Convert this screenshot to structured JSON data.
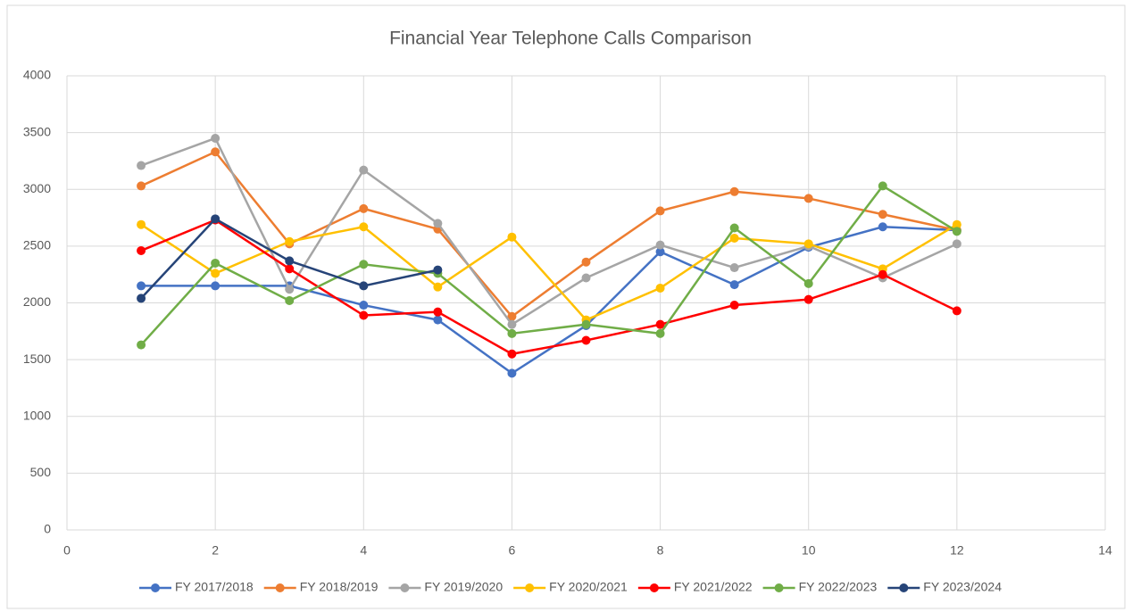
{
  "chart_data": {
    "type": "line",
    "title": "Financial Year Telephone Calls Comparison",
    "x": [
      1,
      2,
      3,
      4,
      5,
      6,
      7,
      8,
      9,
      10,
      11,
      12
    ],
    "xlim": [
      0,
      14
    ],
    "xticks": [
      0,
      2,
      4,
      6,
      8,
      10,
      12,
      14
    ],
    "ylim": [
      0,
      4000
    ],
    "yticks": [
      0,
      500,
      1000,
      1500,
      2000,
      2500,
      3000,
      3500,
      4000
    ],
    "grid": true,
    "legend": "bottom",
    "series": [
      {
        "name": "FY 2017/2018",
        "color": "#4472c4",
        "values": [
          2150,
          2150,
          2150,
          1980,
          1850,
          1380,
          1800,
          2450,
          2160,
          2490,
          2670,
          2640
        ]
      },
      {
        "name": "FY 2018/2019",
        "color": "#ed7d31",
        "values": [
          3030,
          3330,
          2520,
          2830,
          2650,
          1880,
          2360,
          2810,
          2980,
          2920,
          2780,
          2640
        ]
      },
      {
        "name": "FY 2019/2020",
        "color": "#a5a5a5",
        "values": [
          3210,
          3450,
          2120,
          3170,
          2700,
          1810,
          2220,
          2510,
          2310,
          2500,
          2220,
          2520
        ]
      },
      {
        "name": "FY 2020/2021",
        "color": "#ffc000",
        "values": [
          2690,
          2260,
          2540,
          2670,
          2140,
          2580,
          1850,
          2130,
          2570,
          2520,
          2300,
          2690
        ]
      },
      {
        "name": "FY 2021/2022",
        "color": "#ff0000",
        "values": [
          2460,
          2730,
          2300,
          1890,
          1920,
          1550,
          1670,
          1810,
          1980,
          2030,
          2250,
          1930
        ]
      },
      {
        "name": "FY 2022/2023",
        "color": "#70ad47",
        "values": [
          1630,
          2350,
          2020,
          2340,
          2260,
          1730,
          1810,
          1730,
          2660,
          2170,
          3030,
          2630
        ]
      },
      {
        "name": "FY 2023/2024",
        "color": "#264478",
        "values": [
          2040,
          2740,
          2370,
          2150,
          2290,
          null,
          null,
          null,
          null,
          null,
          null,
          null
        ]
      }
    ]
  }
}
